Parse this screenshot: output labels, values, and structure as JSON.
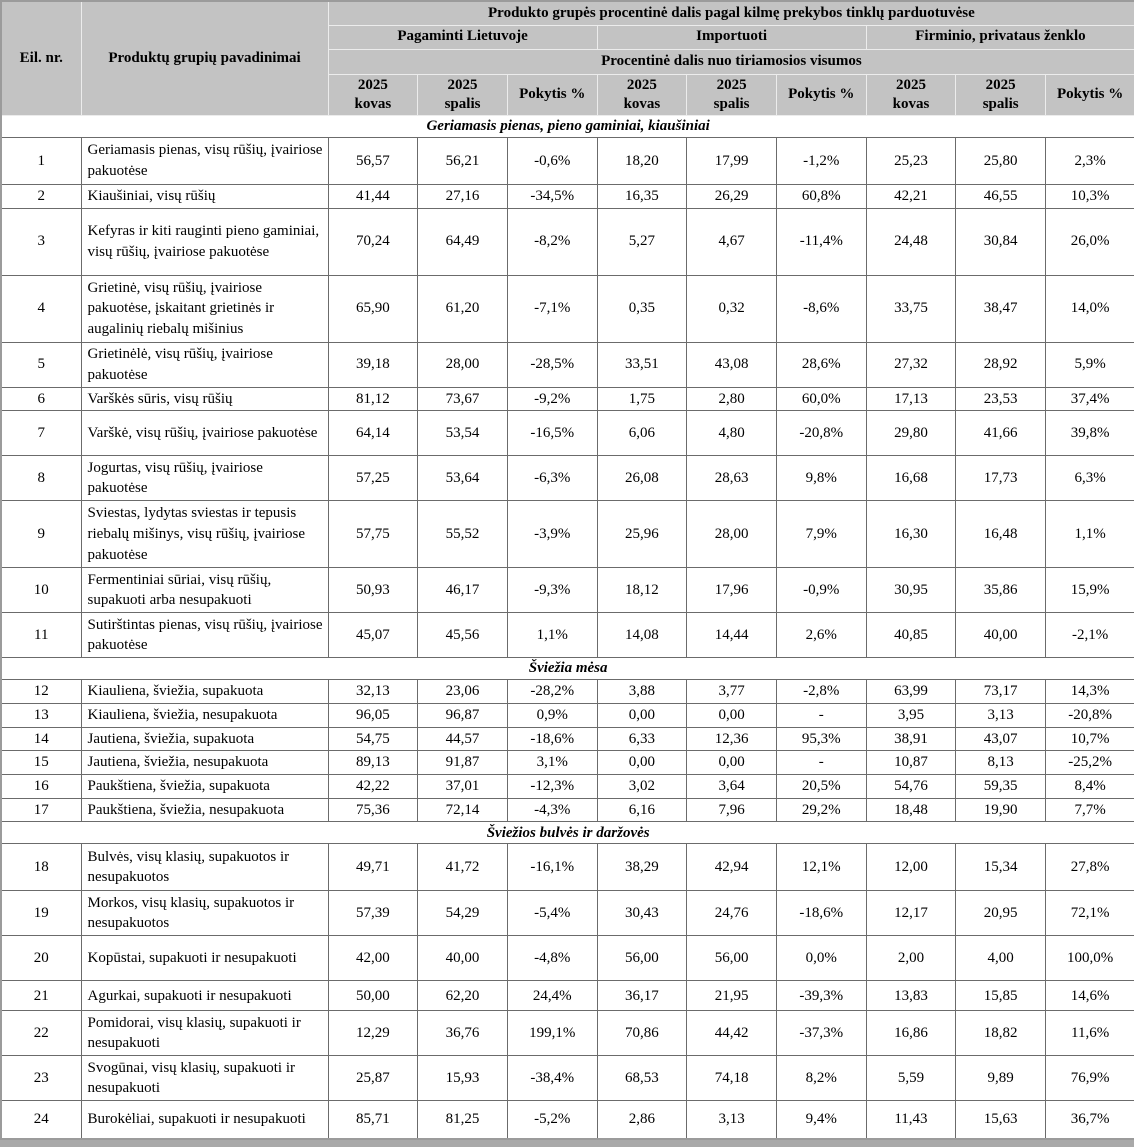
{
  "table": {
    "title": "Produkto grupės procentinė dalis pagal kilmę prekybos tinklų parduotuvėse",
    "col_eil": "Eil. nr.",
    "col_products": "Produktų grupių pavadinimai",
    "groups": [
      "Pagaminti Lietuvoje",
      "Importuoti",
      "Firminio, privataus ženklo"
    ],
    "subtitle": "Procentinė dalis nuo tiriamosios visumos",
    "periods": [
      {
        "l1": "2025",
        "l2": "kovas"
      },
      {
        "l1": "2025",
        "l2": "spalis"
      },
      {
        "l1": "Pokytis %",
        "l2": ""
      }
    ]
  },
  "sections": [
    {
      "title": "Geriamasis pienas, pieno gaminiai, kiaušiniai",
      "rows": [
        {
          "nr": "1",
          "name": "Geriamasis pienas, visų rūšių, įvairiose pakuotėse",
          "values": [
            "56,57",
            "56,21",
            "-0,6%",
            "18,20",
            "17,99",
            "-1,2%",
            "25,23",
            "25,80",
            "2,3%"
          ]
        },
        {
          "nr": "2",
          "name": "Kiaušiniai, visų rūšių",
          "values": [
            "41,44",
            "27,16",
            "-34,5%",
            "16,35",
            "26,29",
            "60,8%",
            "42,21",
            "46,55",
            "10,3%"
          ]
        },
        {
          "nr": "3",
          "name": "Kefyras ir kiti rauginti pieno gaminiai, visų rūšių, įvairiose pakuotėse",
          "values": [
            "70,24",
            "64,49",
            "-8,2%",
            "5,27",
            "4,67",
            "-11,4%",
            "24,48",
            "30,84",
            "26,0%"
          ]
        },
        {
          "nr": "4",
          "name": "Grietinė, visų rūšių, įvairiose pakuotėse, įskaitant grietinės ir augalinių riebalų mišinius",
          "values": [
            "65,90",
            "61,20",
            "-7,1%",
            "0,35",
            "0,32",
            "-8,6%",
            "33,75",
            "38,47",
            "14,0%"
          ]
        },
        {
          "nr": "5",
          "name": "Grietinėlė, visų rūšių, įvairiose pakuotėse",
          "values": [
            "39,18",
            "28,00",
            "-28,5%",
            "33,51",
            "43,08",
            "28,6%",
            "27,32",
            "28,92",
            "5,9%"
          ]
        },
        {
          "nr": "6",
          "name": "Varškės sūris, visų rūšių",
          "values": [
            "81,12",
            "73,67",
            "-9,2%",
            "1,75",
            "2,80",
            "60,0%",
            "17,13",
            "23,53",
            "37,4%"
          ]
        },
        {
          "nr": "7",
          "name": "Varškė, visų rūšių, įvairiose pakuotėse",
          "values": [
            "64,14",
            "53,54",
            "-16,5%",
            "6,06",
            "4,80",
            "-20,8%",
            "29,80",
            "41,66",
            "39,8%"
          ]
        },
        {
          "nr": "8",
          "name": "Jogurtas, visų rūšių, įvairiose pakuotėse",
          "values": [
            "57,25",
            "53,64",
            "-6,3%",
            "26,08",
            "28,63",
            "9,8%",
            "16,68",
            "17,73",
            "6,3%"
          ]
        },
        {
          "nr": "9",
          "name": "Sviestas,  lydytas sviestas ir tepusis riebalų mišinys, visų rūšių, įvairiose pakuotėse",
          "values": [
            "57,75",
            "55,52",
            "-3,9%",
            "25,96",
            "28,00",
            "7,9%",
            "16,30",
            "16,48",
            "1,1%"
          ]
        },
        {
          "nr": "10",
          "name": "Fermentiniai sūriai, visų rūšių, supakuoti arba nesupakuoti",
          "values": [
            "50,93",
            "46,17",
            "-9,3%",
            "18,12",
            "17,96",
            "-0,9%",
            "30,95",
            "35,86",
            "15,9%"
          ]
        },
        {
          "nr": "11",
          "name": "Sutirštintas pienas, visų rūšių, įvairiose pakuotėse",
          "values": [
            "45,07",
            "45,56",
            "1,1%",
            "14,08",
            "14,44",
            "2,6%",
            "40,85",
            "40,00",
            "-2,1%"
          ]
        }
      ]
    },
    {
      "title": "Šviežia mėsa",
      "rows": [
        {
          "nr": "12",
          "name": "Kiauliena, šviežia, supakuota",
          "values": [
            "32,13",
            "23,06",
            "-28,2%",
            "3,88",
            "3,77",
            "-2,8%",
            "63,99",
            "73,17",
            "14,3%"
          ]
        },
        {
          "nr": "13",
          "name": "Kiauliena, šviežia, nesupakuota",
          "values": [
            "96,05",
            "96,87",
            "0,9%",
            "0,00",
            "0,00",
            "-",
            "3,95",
            "3,13",
            "-20,8%"
          ]
        },
        {
          "nr": "14",
          "name": "Jautiena, šviežia, supakuota",
          "values": [
            "54,75",
            "44,57",
            "-18,6%",
            "6,33",
            "12,36",
            "95,3%",
            "38,91",
            "43,07",
            "10,7%"
          ]
        },
        {
          "nr": "15",
          "name": "Jautiena, šviežia, nesupakuota",
          "values": [
            "89,13",
            "91,87",
            "3,1%",
            "0,00",
            "0,00",
            "-",
            "10,87",
            "8,13",
            "-25,2%"
          ]
        },
        {
          "nr": "16",
          "name": "Paukštiena, šviežia, supakuota",
          "values": [
            "42,22",
            "37,01",
            "-12,3%",
            "3,02",
            "3,64",
            "20,5%",
            "54,76",
            "59,35",
            "8,4%"
          ]
        },
        {
          "nr": "17",
          "name": "Paukštiena, šviežia, nesupakuota",
          "values": [
            "75,36",
            "72,14",
            "-4,3%",
            "6,16",
            "7,96",
            "29,2%",
            "18,48",
            "19,90",
            "7,7%"
          ]
        }
      ]
    },
    {
      "title": "Šviežios bulvės ir daržovės",
      "rows": [
        {
          "nr": "18",
          "name": "Bulvės, visų klasių, supakuotos ir nesupakuotos",
          "values": [
            "49,71",
            "41,72",
            "-16,1%",
            "38,29",
            "42,94",
            "12,1%",
            "12,00",
            "15,34",
            "27,8%"
          ]
        },
        {
          "nr": "19",
          "name": "Morkos, visų klasių, supakuotos ir nesupakuotos",
          "values": [
            "57,39",
            "54,29",
            "-5,4%",
            "30,43",
            "24,76",
            "-18,6%",
            "12,17",
            "20,95",
            "72,1%"
          ]
        },
        {
          "nr": "20",
          "name": "Kopūstai, supakuoti ir nesupakuoti",
          "values": [
            "42,00",
            "40,00",
            "-4,8%",
            "56,00",
            "56,00",
            "0,0%",
            "2,00",
            "4,00",
            "100,0%"
          ]
        },
        {
          "nr": "21",
          "name": "Agurkai, supakuoti ir nesupakuoti",
          "values": [
            "50,00",
            "62,20",
            "24,4%",
            "36,17",
            "21,95",
            "-39,3%",
            "13,83",
            "15,85",
            "14,6%"
          ]
        },
        {
          "nr": "22",
          "name": "Pomidorai, visų klasių, supakuoti ir nesupakuoti",
          "values": [
            "12,29",
            "36,76",
            "199,1%",
            "70,86",
            "44,42",
            "-37,3%",
            "16,86",
            "18,82",
            "11,6%"
          ]
        },
        {
          "nr": "23",
          "name": "Svogūnai, visų klasių, supakuoti ir nesupakuoti",
          "values": [
            "25,87",
            "15,93",
            "-38,4%",
            "68,53",
            "74,18",
            "8,2%",
            "5,59",
            "9,89",
            "76,9%"
          ]
        },
        {
          "nr": "24",
          "name": "Burokėliai, supakuoti ir nesupakuoti",
          "values": [
            "85,71",
            "81,25",
            "-5,2%",
            "2,86",
            "3,13",
            "9,4%",
            "11,43",
            "15,63",
            "36,7%"
          ]
        }
      ]
    }
  ]
}
